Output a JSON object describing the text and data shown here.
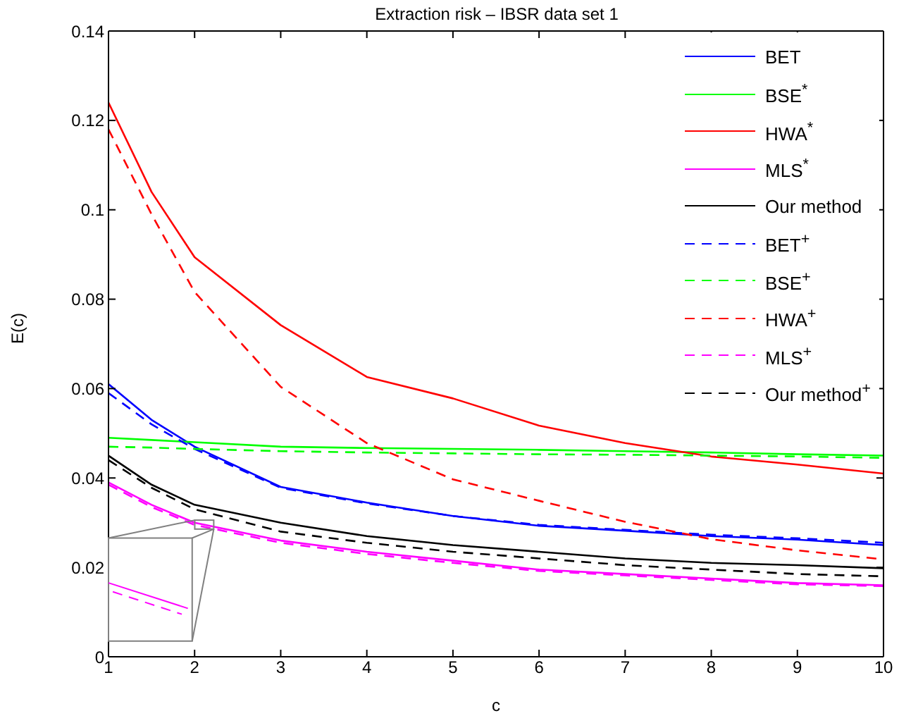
{
  "chart_data": {
    "type": "line",
    "title": "Extraction risk – IBSR data set 1",
    "xlabel": "c",
    "ylabel": "E(c)",
    "x": [
      1,
      1.5,
      2,
      3,
      4,
      5,
      6,
      7,
      8,
      9,
      10
    ],
    "xlim": [
      1,
      10
    ],
    "xticks": [
      1,
      2,
      3,
      4,
      5,
      6,
      7,
      8,
      9,
      10
    ],
    "ylim": [
      0,
      0.14
    ],
    "yticks": [
      0,
      0.02,
      0.04,
      0.06,
      0.08,
      0.1,
      0.12,
      0.14
    ],
    "legend": "top right",
    "marker": "none",
    "series": [
      {
        "name": "BET",
        "color": "#0000ff",
        "line_style": "solid",
        "values": [
          0.061,
          0.053,
          0.047,
          0.038,
          0.0345,
          0.0315,
          0.0293,
          0.0282,
          0.027,
          0.0262,
          0.025
        ]
      },
      {
        "name": "BSE$^{*}$",
        "color": "#00ff00",
        "line_style": "solid",
        "values": [
          0.049,
          0.0485,
          0.048,
          0.047,
          0.0467,
          0.0465,
          0.0463,
          0.046,
          0.0457,
          0.0453,
          0.045
        ]
      },
      {
        "name": "HWA$^{*}$",
        "color": "#ff0000",
        "line_style": "solid",
        "values": [
          0.124,
          0.104,
          0.0894,
          0.0742,
          0.0626,
          0.0578,
          0.0517,
          0.0478,
          0.0448,
          0.043,
          0.041
        ]
      },
      {
        "name": "MLS$^{*}$",
        "color": "#ff00ff",
        "line_style": "solid",
        "values": [
          0.039,
          0.034,
          0.03,
          0.026,
          0.0235,
          0.0215,
          0.0195,
          0.0185,
          0.0175,
          0.0165,
          0.016
        ]
      },
      {
        "name": "Our method",
        "color": "#000000",
        "line_style": "solid",
        "values": [
          0.045,
          0.0385,
          0.034,
          0.03,
          0.027,
          0.025,
          0.0235,
          0.022,
          0.021,
          0.0205,
          0.0198
        ]
      },
      {
        "name": "BET$^{+}$",
        "color": "#0000ff",
        "line_style": "dashed",
        "values": [
          0.059,
          0.052,
          0.0465,
          0.0378,
          0.0343,
          0.0315,
          0.0295,
          0.0284,
          0.0273,
          0.0265,
          0.0255
        ]
      },
      {
        "name": "BSE$^{+}$",
        "color": "#00ff00",
        "line_style": "dashed",
        "values": [
          0.047,
          0.0468,
          0.0465,
          0.046,
          0.0457,
          0.0455,
          0.0453,
          0.0452,
          0.045,
          0.0448,
          0.0445
        ]
      },
      {
        "name": "HWA$^{+}$",
        "color": "#ff0000",
        "line_style": "dashed",
        "values": [
          0.118,
          0.099,
          0.0816,
          0.0604,
          0.0478,
          0.0397,
          0.0349,
          0.0302,
          0.0263,
          0.0238,
          0.0218
        ]
      },
      {
        "name": "MLS$^{+}$",
        "color": "#ff00ff",
        "line_style": "dashed",
        "values": [
          0.0385,
          0.0335,
          0.0295,
          0.0255,
          0.023,
          0.021,
          0.0192,
          0.0182,
          0.0172,
          0.0162,
          0.0158
        ]
      },
      {
        "name": "Our method$^{+}$",
        "color": "#000000",
        "line_style": "dashed",
        "values": [
          0.044,
          0.0378,
          0.033,
          0.028,
          0.0255,
          0.0235,
          0.022,
          0.0205,
          0.0195,
          0.0185,
          0.018
        ]
      }
    ]
  }
}
